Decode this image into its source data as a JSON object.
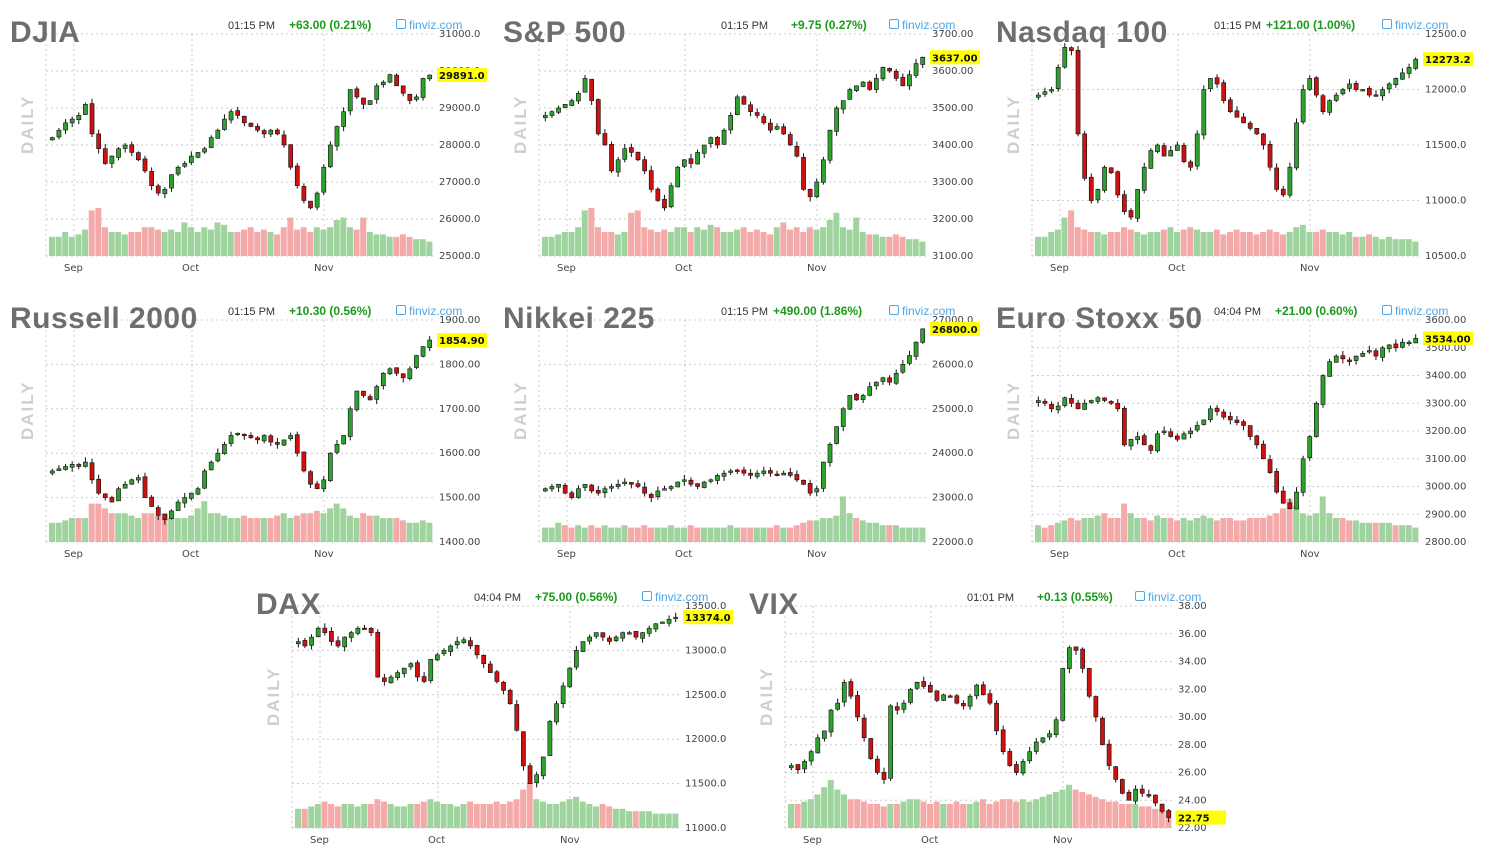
{
  "panels": [
    {
      "title": "DJIA",
      "time": "01:15 PM",
      "change": "+63.00 (0.21%)",
      "source": "finviz.com",
      "period": "DAILY",
      "last_label": "29891.0"
    },
    {
      "title": "S&P 500",
      "time": "01:15 PM",
      "change": "+9.75 (0.27%)",
      "source": "finviz.com",
      "period": "DAILY",
      "last_label": "3637.00"
    },
    {
      "title": "Nasdaq 100",
      "time": "01:15 PM",
      "change": "+121.00 (1.00%)",
      "source": "finviz.com",
      "period": "DAILY",
      "last_label": "12273.2"
    },
    {
      "title": "Russell 2000",
      "time": "01:15 PM",
      "change": "+10.30 (0.56%)",
      "source": "finviz.com",
      "period": "DAILY",
      "last_label": "1854.90"
    },
    {
      "title": "Nikkei 225",
      "time": "01:15 PM",
      "change": "+490.00 (1.86%)",
      "source": "finviz.com",
      "period": "DAILY",
      "last_label": "26800.0"
    },
    {
      "title": "Euro Stoxx 50",
      "time": "04:04 PM",
      "change": "+21.00 (0.60%)",
      "source": "finviz.com",
      "period": "DAILY",
      "last_label": "3534.00"
    },
    {
      "title": "DAX",
      "time": "04:04 PM",
      "change": "+75.00 (0.56%)",
      "source": "finviz.com",
      "period": "DAILY",
      "last_label": "13374.0"
    },
    {
      "title": "VIX",
      "time": "01:01 PM",
      "change": "+0.13 (0.55%)",
      "source": "finviz.com",
      "period": "DAILY",
      "last_label": "22.75"
    }
  ],
  "colors": {
    "up": "#2ea02e",
    "down": "#cc1111",
    "vol_up": "#9fd49f",
    "vol_down": "#f5aaaa",
    "grid": "#cccccc",
    "last_bg": "#ffff00",
    "change": "#1a9a1a",
    "source": "#4da6e8"
  },
  "chart_data": [
    {
      "type": "candlestick",
      "name": "DJIA",
      "x_ticks": [
        "Sep",
        "Oct",
        "Nov"
      ],
      "ylim": [
        25000,
        31000
      ],
      "y_ticks": [
        "31000.0",
        "30000.0",
        "29000.0",
        "28000.0",
        "27000.0",
        "26000.0",
        "25000.0"
      ],
      "last": 29891,
      "closes": [
        28200,
        28400,
        28600,
        28700,
        28800,
        29100,
        28300,
        27900,
        27500,
        27700,
        27900,
        28000,
        27800,
        27600,
        27300,
        26900,
        26700,
        26800,
        27200,
        27400,
        27500,
        27700,
        27800,
        27900,
        28200,
        28400,
        28700,
        28900,
        28800,
        28600,
        28500,
        28400,
        28300,
        28400,
        28300,
        28000,
        27400,
        26900,
        26500,
        26300,
        26700,
        27400,
        28000,
        28500,
        28900,
        29500,
        29300,
        29100,
        29200,
        29600,
        29700,
        29900,
        29600,
        29400,
        29200,
        29300,
        29800,
        29891
      ],
      "vol_scale": [
        0.4,
        0.4,
        0.5,
        0.4,
        0.45,
        0.55,
        0.95,
        1.0,
        0.6,
        0.5,
        0.5,
        0.45,
        0.5,
        0.5,
        0.6,
        0.6,
        0.55,
        0.5,
        0.55,
        0.5,
        0.7,
        0.6,
        0.5,
        0.6,
        0.55,
        0.7,
        0.65,
        0.5,
        0.5,
        0.55,
        0.6,
        0.5,
        0.55,
        0.5,
        0.45,
        0.6,
        0.8,
        0.55,
        0.6,
        0.5,
        0.6,
        0.55,
        0.6,
        0.75,
        0.8,
        0.6,
        0.55,
        0.8,
        0.5,
        0.45,
        0.45,
        0.4,
        0.4,
        0.45,
        0.4,
        0.35,
        0.35,
        0.3
      ]
    },
    {
      "type": "candlestick",
      "name": "S&P 500",
      "x_ticks": [
        "Sep",
        "Oct",
        "Nov"
      ],
      "ylim": [
        3100,
        3700
      ],
      "y_ticks": [
        "3700.00",
        "3600.00",
        "3500.00",
        "3400.00",
        "3300.00",
        "3200.00",
        "3100.00"
      ],
      "last": 3637,
      "closes": [
        3480,
        3490,
        3500,
        3510,
        3520,
        3540,
        3580,
        3520,
        3430,
        3400,
        3330,
        3360,
        3390,
        3380,
        3360,
        3330,
        3280,
        3250,
        3230,
        3290,
        3340,
        3360,
        3350,
        3380,
        3400,
        3420,
        3400,
        3440,
        3480,
        3530,
        3510,
        3490,
        3480,
        3460,
        3440,
        3450,
        3430,
        3400,
        3370,
        3280,
        3260,
        3300,
        3360,
        3440,
        3500,
        3520,
        3550,
        3560,
        3570,
        3550,
        3580,
        3610,
        3600,
        3580,
        3560,
        3590,
        3620,
        3637
      ],
      "vol_scale": [
        0.4,
        0.4,
        0.45,
        0.5,
        0.5,
        0.6,
        0.95,
        1.0,
        0.6,
        0.5,
        0.5,
        0.45,
        0.5,
        0.9,
        0.95,
        0.6,
        0.55,
        0.5,
        0.55,
        0.5,
        0.6,
        0.6,
        0.5,
        0.6,
        0.55,
        0.65,
        0.6,
        0.5,
        0.5,
        0.55,
        0.6,
        0.5,
        0.55,
        0.5,
        0.45,
        0.6,
        0.7,
        0.55,
        0.6,
        0.5,
        0.6,
        0.55,
        0.6,
        0.75,
        0.9,
        0.6,
        0.55,
        0.8,
        0.5,
        0.45,
        0.45,
        0.4,
        0.4,
        0.45,
        0.4,
        0.35,
        0.35,
        0.3
      ]
    },
    {
      "type": "candlestick",
      "name": "Nasdaq 100",
      "x_ticks": [
        "Sep",
        "Oct",
        "Nov"
      ],
      "ylim": [
        10500,
        12500
      ],
      "y_ticks": [
        "12500.0",
        "12000.0",
        "11500.0",
        "11000.0",
        "10500.0"
      ],
      "last": 12273,
      "closes": [
        11950,
        11980,
        12000,
        12200,
        12380,
        12350,
        11600,
        11200,
        11000,
        11100,
        11300,
        11250,
        11050,
        10900,
        10850,
        11100,
        11300,
        11450,
        11500,
        11400,
        11450,
        11500,
        11350,
        11300,
        11600,
        12000,
        12100,
        12050,
        11900,
        11800,
        11750,
        11700,
        11650,
        11600,
        11500,
        11300,
        11100,
        11050,
        11300,
        11700,
        12000,
        12100,
        11950,
        11800,
        11900,
        11950,
        12000,
        12050,
        12000,
        12000,
        11950,
        11950,
        12000,
        12050,
        12100,
        12150,
        12200,
        12273
      ],
      "vol_scale": [
        0.4,
        0.4,
        0.5,
        0.55,
        0.8,
        0.95,
        0.6,
        0.55,
        0.5,
        0.5,
        0.45,
        0.5,
        0.5,
        0.6,
        0.55,
        0.5,
        0.45,
        0.5,
        0.5,
        0.55,
        0.6,
        0.5,
        0.55,
        0.6,
        0.55,
        0.5,
        0.5,
        0.55,
        0.45,
        0.5,
        0.55,
        0.5,
        0.5,
        0.45,
        0.5,
        0.55,
        0.5,
        0.45,
        0.5,
        0.6,
        0.65,
        0.5,
        0.5,
        0.55,
        0.5,
        0.5,
        0.45,
        0.5,
        0.4,
        0.4,
        0.45,
        0.4,
        0.35,
        0.4,
        0.35,
        0.35,
        0.35,
        0.3
      ]
    },
    {
      "type": "candlestick",
      "name": "Russell 2000",
      "x_ticks": [
        "Sep",
        "Oct",
        "Nov"
      ],
      "ylim": [
        1400,
        1900
      ],
      "y_ticks": [
        "1900.00",
        "1800.00",
        "1700.00",
        "1600.00",
        "1500.00",
        "1400.00"
      ],
      "last": 1854.9,
      "closes": [
        1560,
        1565,
        1570,
        1575,
        1570,
        1580,
        1540,
        1510,
        1500,
        1490,
        1520,
        1530,
        1540,
        1545,
        1500,
        1480,
        1460,
        1450,
        1470,
        1490,
        1500,
        1510,
        1520,
        1560,
        1580,
        1600,
        1620,
        1640,
        1645,
        1640,
        1635,
        1630,
        1640,
        1625,
        1620,
        1630,
        1640,
        1600,
        1560,
        1530,
        1520,
        1540,
        1600,
        1620,
        1640,
        1700,
        1740,
        1730,
        1720,
        1750,
        1780,
        1790,
        1780,
        1770,
        1790,
        1820,
        1840,
        1854.9
      ],
      "vol_scale": [
        0.4,
        0.4,
        0.45,
        0.5,
        0.5,
        0.5,
        0.8,
        0.8,
        0.7,
        0.6,
        0.6,
        0.6,
        0.55,
        0.5,
        0.6,
        0.6,
        0.55,
        0.6,
        0.5,
        0.5,
        0.5,
        0.55,
        0.7,
        0.85,
        0.6,
        0.6,
        0.55,
        0.5,
        0.5,
        0.55,
        0.5,
        0.5,
        0.5,
        0.5,
        0.55,
        0.6,
        0.5,
        0.55,
        0.6,
        0.6,
        0.65,
        0.6,
        0.7,
        0.8,
        0.7,
        0.55,
        0.5,
        0.6,
        0.55,
        0.55,
        0.5,
        0.5,
        0.5,
        0.45,
        0.4,
        0.4,
        0.45,
        0.4
      ]
    },
    {
      "type": "candlestick",
      "name": "Nikkei 225",
      "x_ticks": [
        "Sep",
        "Oct",
        "Nov"
      ],
      "ylim": [
        22000,
        27000
      ],
      "y_ticks": [
        "27000.0",
        "26000.0",
        "25000.0",
        "24000.0",
        "23000.0",
        "22000.0"
      ],
      "last": 26800,
      "closes": [
        23200,
        23250,
        23300,
        23100,
        23000,
        23200,
        23300,
        23150,
        23100,
        23200,
        23250,
        23300,
        23350,
        23300,
        23250,
        23100,
        23000,
        23150,
        23200,
        23250,
        23350,
        23400,
        23300,
        23250,
        23350,
        23400,
        23500,
        23550,
        23600,
        23600,
        23550,
        23500,
        23550,
        23600,
        23550,
        23500,
        23550,
        23500,
        23400,
        23300,
        23100,
        23200,
        23800,
        24200,
        24600,
        25000,
        25300,
        25200,
        25300,
        25500,
        25600,
        25700,
        25600,
        25800,
        26000,
        26200,
        26500,
        26800
      ],
      "vol_scale": [
        0.3,
        0.3,
        0.4,
        0.35,
        0.3,
        0.35,
        0.3,
        0.35,
        0.3,
        0.35,
        0.3,
        0.3,
        0.35,
        0.3,
        0.3,
        0.35,
        0.3,
        0.3,
        0.3,
        0.35,
        0.3,
        0.3,
        0.35,
        0.3,
        0.3,
        0.3,
        0.3,
        0.3,
        0.35,
        0.3,
        0.3,
        0.3,
        0.3,
        0.3,
        0.3,
        0.35,
        0.3,
        0.3,
        0.35,
        0.4,
        0.45,
        0.45,
        0.5,
        0.5,
        0.55,
        0.95,
        0.6,
        0.5,
        0.45,
        0.4,
        0.4,
        0.35,
        0.35,
        0.35,
        0.3,
        0.3,
        0.3,
        0.3
      ]
    },
    {
      "type": "candlestick",
      "name": "Euro Stoxx 50",
      "x_ticks": [
        "Sep",
        "Oct",
        "Nov"
      ],
      "ylim": [
        2800,
        3600
      ],
      "y_ticks": [
        "3600.00",
        "3500.00",
        "3400.00",
        "3300.00",
        "3200.00",
        "3100.00",
        "3000.00",
        "2900.00",
        "2800.00"
      ],
      "last": 3534,
      "closes": [
        3310,
        3300,
        3280,
        3290,
        3320,
        3300,
        3280,
        3300,
        3310,
        3320,
        3310,
        3300,
        3280,
        3150,
        3170,
        3180,
        3150,
        3130,
        3190,
        3200,
        3180,
        3170,
        3190,
        3200,
        3220,
        3240,
        3280,
        3270,
        3250,
        3240,
        3230,
        3220,
        3180,
        3150,
        3100,
        3050,
        2980,
        2940,
        2920,
        2980,
        3100,
        3180,
        3300,
        3400,
        3450,
        3470,
        3460,
        3450,
        3470,
        3480,
        3490,
        3470,
        3500,
        3510,
        3500,
        3520,
        3520,
        3534
      ],
      "vol_scale": [
        0.35,
        0.3,
        0.35,
        0.4,
        0.45,
        0.5,
        0.45,
        0.5,
        0.5,
        0.55,
        0.6,
        0.5,
        0.5,
        0.8,
        0.6,
        0.5,
        0.5,
        0.45,
        0.55,
        0.5,
        0.5,
        0.45,
        0.5,
        0.45,
        0.5,
        0.55,
        0.5,
        0.45,
        0.5,
        0.5,
        0.45,
        0.45,
        0.5,
        0.5,
        0.5,
        0.55,
        0.6,
        0.7,
        0.9,
        0.75,
        0.6,
        0.55,
        0.6,
        0.95,
        0.6,
        0.5,
        0.5,
        0.45,
        0.45,
        0.4,
        0.4,
        0.4,
        0.4,
        0.4,
        0.35,
        0.35,
        0.35,
        0.3
      ]
    },
    {
      "type": "candlestick",
      "name": "DAX",
      "x_ticks": [
        "Sep",
        "Oct",
        "Nov"
      ],
      "ylim": [
        11000,
        13500
      ],
      "y_ticks": [
        "13500.0",
        "13000.0",
        "12500.0",
        "12000.0",
        "11500.0",
        "11000.0"
      ],
      "last": 13374,
      "closes": [
        13100,
        13050,
        13150,
        13250,
        13200,
        13100,
        13050,
        13150,
        13200,
        13250,
        13250,
        13200,
        12700,
        12650,
        12700,
        12750,
        12800,
        12850,
        12700,
        12650,
        12900,
        12950,
        13000,
        13050,
        13100,
        13120,
        13050,
        12950,
        12850,
        12750,
        12650,
        12550,
        12400,
        12100,
        11700,
        11500,
        11600,
        11800,
        12200,
        12400,
        12600,
        12800,
        13000,
        13100,
        13150,
        13200,
        13150,
        13100,
        13150,
        13200,
        13200,
        13150,
        13200,
        13250,
        13300,
        13320,
        13350,
        13374
      ],
      "vol_scale": [
        0.4,
        0.4,
        0.45,
        0.5,
        0.55,
        0.5,
        0.45,
        0.5,
        0.5,
        0.45,
        0.5,
        0.5,
        0.6,
        0.55,
        0.5,
        0.45,
        0.45,
        0.5,
        0.5,
        0.55,
        0.6,
        0.55,
        0.5,
        0.5,
        0.45,
        0.5,
        0.55,
        0.5,
        0.5,
        0.5,
        0.55,
        0.5,
        0.55,
        0.6,
        0.8,
        0.95,
        0.6,
        0.55,
        0.5,
        0.5,
        0.55,
        0.6,
        0.65,
        0.55,
        0.5,
        0.45,
        0.5,
        0.45,
        0.4,
        0.4,
        0.35,
        0.35,
        0.35,
        0.35,
        0.3,
        0.3,
        0.3,
        0.3
      ]
    },
    {
      "type": "candlestick",
      "name": "VIX",
      "x_ticks": [
        "Sep",
        "Oct",
        "Nov"
      ],
      "ylim": [
        22,
        38
      ],
      "y_ticks": [
        "38.00",
        "36.00",
        "34.00",
        "32.00",
        "30.00",
        "28.00",
        "26.00",
        "24.00",
        "22.00"
      ],
      "last": 22.75,
      "closes": [
        26.5,
        26.2,
        26.8,
        27.5,
        28.5,
        29,
        30.5,
        31,
        32.5,
        31.5,
        30,
        28.5,
        27,
        26,
        25.5,
        30.8,
        30.5,
        31,
        32,
        32.5,
        32.2,
        31.8,
        31.2,
        31.6,
        31.5,
        31.0,
        30.8,
        31.5,
        32.3,
        31.6,
        31.0,
        29.0,
        27.5,
        26.5,
        26.0,
        26.8,
        27.5,
        28.2,
        28.5,
        28.8,
        29.8,
        33.5,
        35.0,
        34.8,
        33.5,
        31.5,
        30.0,
        28.0,
        26.5,
        25.5,
        24.5,
        24.0,
        24.8,
        24.5,
        24.3,
        23.8,
        23.2,
        22.75
      ],
      "vol_scale": [
        0.5,
        0.5,
        0.55,
        0.6,
        0.7,
        0.85,
        1.0,
        0.8,
        0.7,
        0.6,
        0.6,
        0.55,
        0.5,
        0.5,
        0.45,
        0.5,
        0.5,
        0.55,
        0.6,
        0.6,
        0.55,
        0.5,
        0.55,
        0.5,
        0.5,
        0.55,
        0.5,
        0.5,
        0.55,
        0.6,
        0.5,
        0.55,
        0.6,
        0.6,
        0.55,
        0.6,
        0.55,
        0.6,
        0.65,
        0.7,
        0.75,
        0.8,
        0.9,
        0.8,
        0.75,
        0.7,
        0.65,
        0.6,
        0.55,
        0.55,
        0.5,
        0.5,
        0.5,
        0.45,
        0.45,
        0.4,
        0.4,
        0.35
      ]
    }
  ]
}
